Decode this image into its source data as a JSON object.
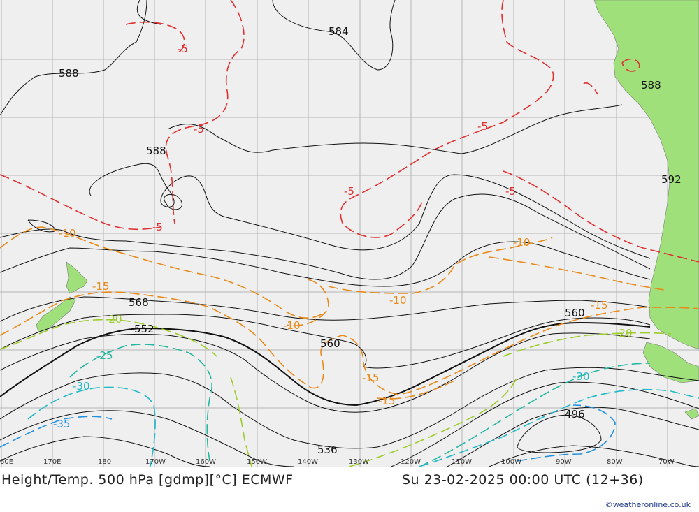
{
  "footer": {
    "title": "Height/Temp. 500 hPa [gdmp][°C] ECMWF",
    "valid": "Su 23-02-2025 00:00 UTC (12+36)",
    "credit": "©weatheronline.co.uk"
  },
  "map": {
    "background": "#efefef",
    "land_color": "#9fe07a",
    "grid_color": "#b4b4b4",
    "lon_labels": [
      "60E",
      "170E",
      "180",
      "170W",
      "160W",
      "150W",
      "140W",
      "130W",
      "120W",
      "110W",
      "100W",
      "90W",
      "80W",
      "70W"
    ],
    "height_labels": [
      "584",
      "588",
      "588",
      "588",
      "592",
      "568",
      "552",
      "560",
      "560",
      "536",
      "496"
    ],
    "temp_labels": [
      {
        "text": "-5",
        "color": "#e03030"
      },
      {
        "text": "-5",
        "color": "#e03030"
      },
      {
        "text": "-5",
        "color": "#e03030"
      },
      {
        "text": "-5",
        "color": "#e03030"
      },
      {
        "text": "-5",
        "color": "#e03030"
      },
      {
        "text": "-5",
        "color": "#e03030"
      },
      {
        "text": "-10",
        "color": "#e88a1a"
      },
      {
        "text": "-10",
        "color": "#e88a1a"
      },
      {
        "text": "-10",
        "color": "#e88a1a"
      },
      {
        "text": "-10",
        "color": "#e88a1a"
      },
      {
        "text": "-15",
        "color": "#e88a1a"
      },
      {
        "text": "-15",
        "color": "#e88a1a"
      },
      {
        "text": "-15",
        "color": "#e88a1a"
      },
      {
        "text": "-15",
        "color": "#e88a1a"
      },
      {
        "text": "-20",
        "color": "#9ccc2a"
      },
      {
        "text": "-20",
        "color": "#9ccc2a"
      },
      {
        "text": "-25",
        "color": "#22b8a0"
      },
      {
        "text": "-30",
        "color": "#22b8c8"
      },
      {
        "text": "-30",
        "color": "#22b8c8"
      },
      {
        "text": "-35",
        "color": "#2090e0"
      }
    ]
  }
}
